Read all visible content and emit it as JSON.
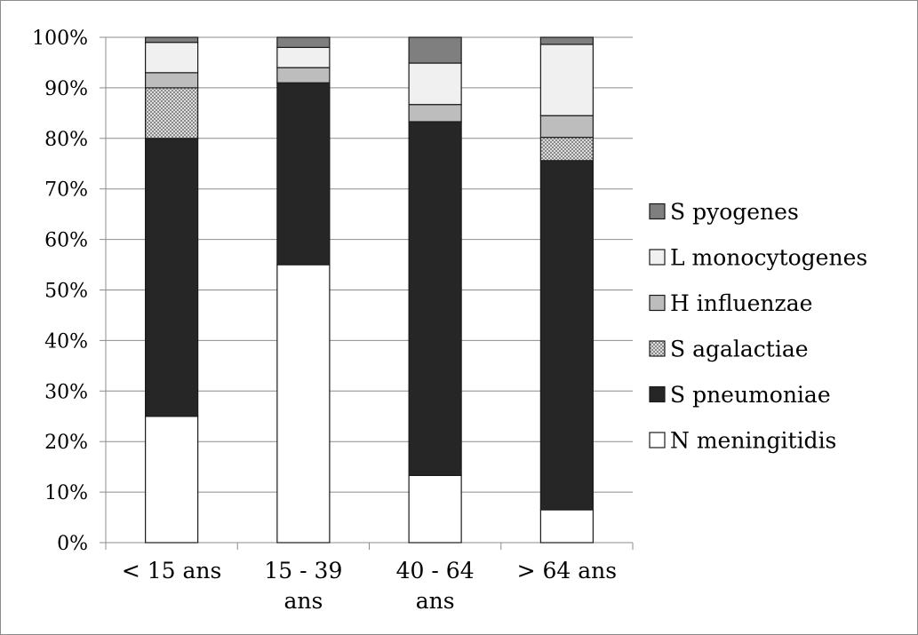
{
  "chart_data": {
    "type": "bar",
    "stacked": true,
    "percent": true,
    "categories": [
      [
        "< 15 ans"
      ],
      [
        "15 - 39",
        "ans"
      ],
      [
        "40 - 64",
        "ans"
      ],
      [
        "> 64 ans"
      ]
    ],
    "series": [
      {
        "name": "N meningitidis",
        "color": "#ffffff",
        "pattern": "none",
        "values": [
          25,
          55,
          13.3,
          6.5
        ]
      },
      {
        "name": "S pneumoniae",
        "color": "#262626",
        "pattern": "none",
        "values": [
          55,
          36,
          70,
          69.1
        ]
      },
      {
        "name": "S agalactiae",
        "color": "#c8c8c8",
        "pattern": "dots",
        "values": [
          10,
          0,
          0,
          4.6
        ]
      },
      {
        "name": "H influenzae",
        "color": "#bdbdbd",
        "pattern": "none",
        "values": [
          3,
          3,
          3.4,
          4.3
        ]
      },
      {
        "name": "L monocytogenes",
        "color": "#f0f0f0",
        "pattern": "none",
        "values": [
          6,
          4,
          8.2,
          14.1
        ]
      },
      {
        "name": "S pyogenes",
        "color": "#7f7f7f",
        "pattern": "none",
        "values": [
          1,
          2,
          5.1,
          1.4
        ]
      }
    ],
    "ylim": [
      0,
      100
    ],
    "yticks": [
      "0%",
      "10%",
      "20%",
      "30%",
      "40%",
      "50%",
      "60%",
      "70%",
      "80%",
      "90%",
      "100%"
    ],
    "grid": true,
    "legend_position": "right",
    "legend_order": [
      "S pyogenes",
      "L monocytogenes",
      "H influenzae",
      "S agalactiae",
      "S pneumoniae",
      "N meningitidis"
    ],
    "title": "",
    "xlabel": "",
    "ylabel": ""
  }
}
